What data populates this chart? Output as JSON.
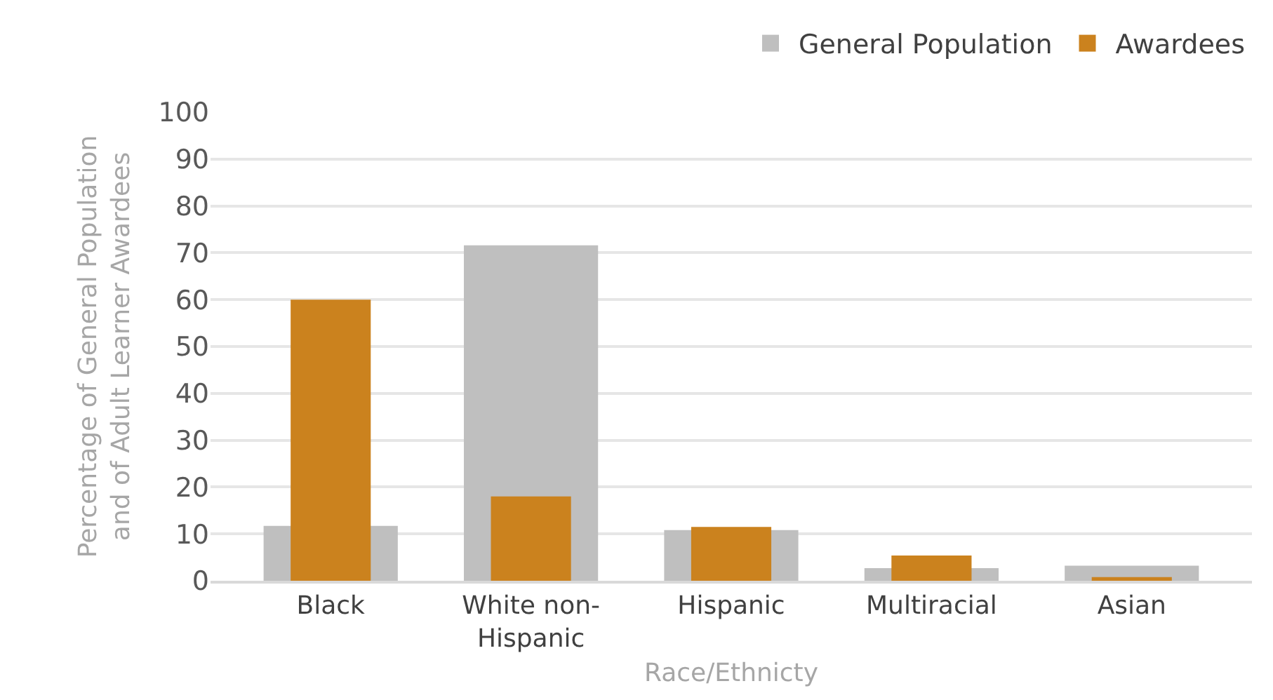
{
  "chart_data": {
    "type": "bar",
    "xlabel": "Race/Ethnicty",
    "ylabel": "Percentage of General Population\nand of Adult Learner Awardees",
    "categories": [
      "Black",
      "White non-Hispanic",
      "Hispanic",
      "Multiracial",
      "Asian"
    ],
    "series": [
      {
        "name": "General Population",
        "color": "#bfbfbf",
        "values": [
          11.7,
          71.6,
          10.8,
          2.7,
          3.2
        ]
      },
      {
        "name": "Awardees",
        "color": "#cb821e",
        "values": [
          60,
          18,
          11.5,
          5.4,
          0.8
        ]
      }
    ],
    "ylim": [
      0,
      100
    ],
    "yticks": [
      0,
      10,
      20,
      30,
      40,
      50,
      60,
      70,
      80,
      90,
      100
    ],
    "grid": "y",
    "legend": "top right"
  }
}
